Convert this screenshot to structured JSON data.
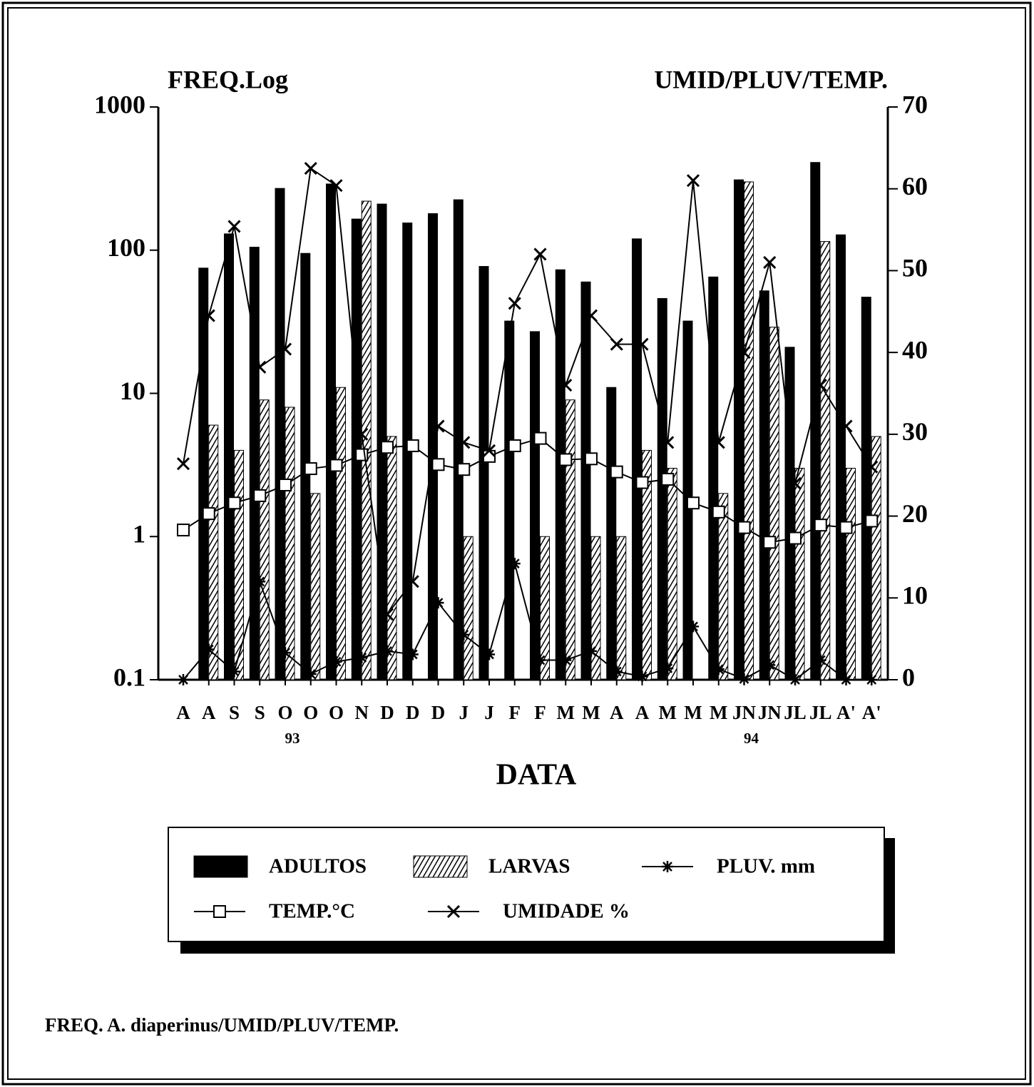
{
  "chart_data": {
    "type": "bar",
    "caption": "FREQ. A. diaperinus/UMID/PLUV/TEMP.",
    "y_label": "FREQ.Log",
    "y2_label": "UMID/PLUV/TEMP.",
    "x_label": "DATA",
    "annotations": [
      {
        "text": "93",
        "category": 4
      },
      {
        "text": "94",
        "category": 22
      }
    ],
    "categories": [
      "A",
      "A",
      "S",
      "S",
      "O",
      "O",
      "O",
      "N",
      "D",
      "D",
      "D",
      "J",
      "J",
      "F",
      "F",
      "M",
      "M",
      "A",
      "A",
      "M",
      "M",
      "M",
      "JN",
      "JN",
      "JL",
      "JL",
      "A'",
      "A'"
    ],
    "ylim": [
      0.1,
      1000
    ],
    "yticks": [
      0.1,
      1,
      10,
      100,
      1000
    ],
    "log_y": true,
    "y2lim": [
      0,
      70
    ],
    "y2ticks": [
      0,
      10,
      20,
      30,
      40,
      50,
      60,
      70
    ],
    "series": [
      {
        "name": "ADULTOS",
        "type": "bar",
        "color": "#000000",
        "fill": "solid",
        "values": [
          null,
          75,
          130,
          105,
          270,
          95,
          290,
          165,
          210,
          155,
          180,
          225,
          77,
          32,
          27,
          73,
          60,
          11,
          120,
          46,
          32,
          65,
          310,
          52,
          21,
          410,
          128,
          47
        ]
      },
      {
        "name": "LARVAS",
        "type": "bar",
        "color": "#000000",
        "fill": "hatch",
        "values": [
          null,
          6,
          4,
          9,
          8,
          2,
          11,
          220,
          5,
          null,
          null,
          1,
          null,
          null,
          1,
          9,
          1,
          1,
          4,
          3,
          null,
          2,
          300,
          29,
          3,
          115,
          3,
          5
        ]
      },
      {
        "name": "PLUV. mm",
        "type": "line",
        "axis": "y2",
        "color": "#000000",
        "marker": "star",
        "values": [
          0,
          3.7,
          1,
          12,
          3.3,
          0.7,
          2.2,
          2.7,
          3.5,
          3.1,
          9.4,
          5.5,
          3.1,
          14.2,
          2.4,
          2.4,
          3.5,
          1,
          0.4,
          1.4,
          6.5,
          1.3,
          0.1,
          1.8,
          0,
          2.4,
          0,
          0
        ]
      },
      {
        "name": "TEMP.°C",
        "type": "line",
        "axis": "y2",
        "color": "#000000",
        "marker": "square",
        "values": [
          18.3,
          20.3,
          21.6,
          22.5,
          23.8,
          25.8,
          26.2,
          27.5,
          28.4,
          28.6,
          26.3,
          25.7,
          27.3,
          28.6,
          29.5,
          26.9,
          27,
          25.4,
          24.1,
          24.5,
          21.6,
          20.5,
          18.6,
          16.8,
          17.3,
          18.9,
          18.6,
          19.4
        ]
      },
      {
        "name": "UMIDADE %",
        "type": "line",
        "axis": "y2",
        "color": "#000000",
        "marker": "x",
        "values": [
          26.4,
          44.5,
          55.4,
          38.2,
          40.4,
          62.5,
          60.4,
          30,
          8,
          12,
          31,
          29,
          28,
          46,
          52,
          36,
          44.5,
          41,
          41,
          29,
          61,
          29,
          40,
          51,
          24,
          36,
          31,
          26
        ]
      }
    ]
  }
}
